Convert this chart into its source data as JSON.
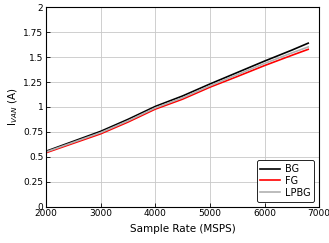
{
  "title": "",
  "xlabel": "Sample Rate (MSPS)",
  "ylabel": "I$_{VAN}$ (A)",
  "xlim": [
    2000,
    7000
  ],
  "ylim": [
    0,
    2
  ],
  "xticks": [
    2000,
    3000,
    4000,
    5000,
    6000,
    7000
  ],
  "yticks": [
    0,
    0.25,
    0.5,
    0.75,
    1.0,
    1.25,
    1.5,
    1.75,
    2.0
  ],
  "series": {
    "BG": {
      "x": [
        2000,
        2500,
        3000,
        3500,
        4000,
        4500,
        5000,
        5500,
        6000,
        6500,
        6800
      ],
      "y": [
        0.555,
        0.655,
        0.755,
        0.875,
        1.005,
        1.11,
        1.23,
        1.345,
        1.46,
        1.57,
        1.64
      ],
      "color": "#000000",
      "linewidth": 1.2
    },
    "FG": {
      "x": [
        2000,
        2500,
        3000,
        3500,
        4000,
        4500,
        5000,
        5500,
        6000,
        6500,
        6800
      ],
      "y": [
        0.54,
        0.635,
        0.73,
        0.848,
        0.978,
        1.078,
        1.198,
        1.305,
        1.415,
        1.518,
        1.578
      ],
      "color": "#ff0000",
      "linewidth": 1.2
    },
    "LPBG": {
      "x": [
        2000,
        2500,
        3000,
        3500,
        4000,
        4500,
        5000,
        5500,
        6000,
        6500,
        6800
      ],
      "y": [
        0.548,
        0.645,
        0.742,
        0.86,
        0.99,
        1.092,
        1.212,
        1.324,
        1.436,
        1.542,
        1.602
      ],
      "color": "#b0b0b0",
      "linewidth": 1.2
    }
  },
  "legend_loc": "lower right",
  "legend_fontsize": 7,
  "tick_fontsize": 6.5,
  "label_fontsize": 7.5,
  "grid": true,
  "grid_color": "#c8c8c8",
  "grid_linewidth": 0.6,
  "background_color": "#ffffff",
  "spine_color": "#000000",
  "spine_linewidth": 0.8
}
